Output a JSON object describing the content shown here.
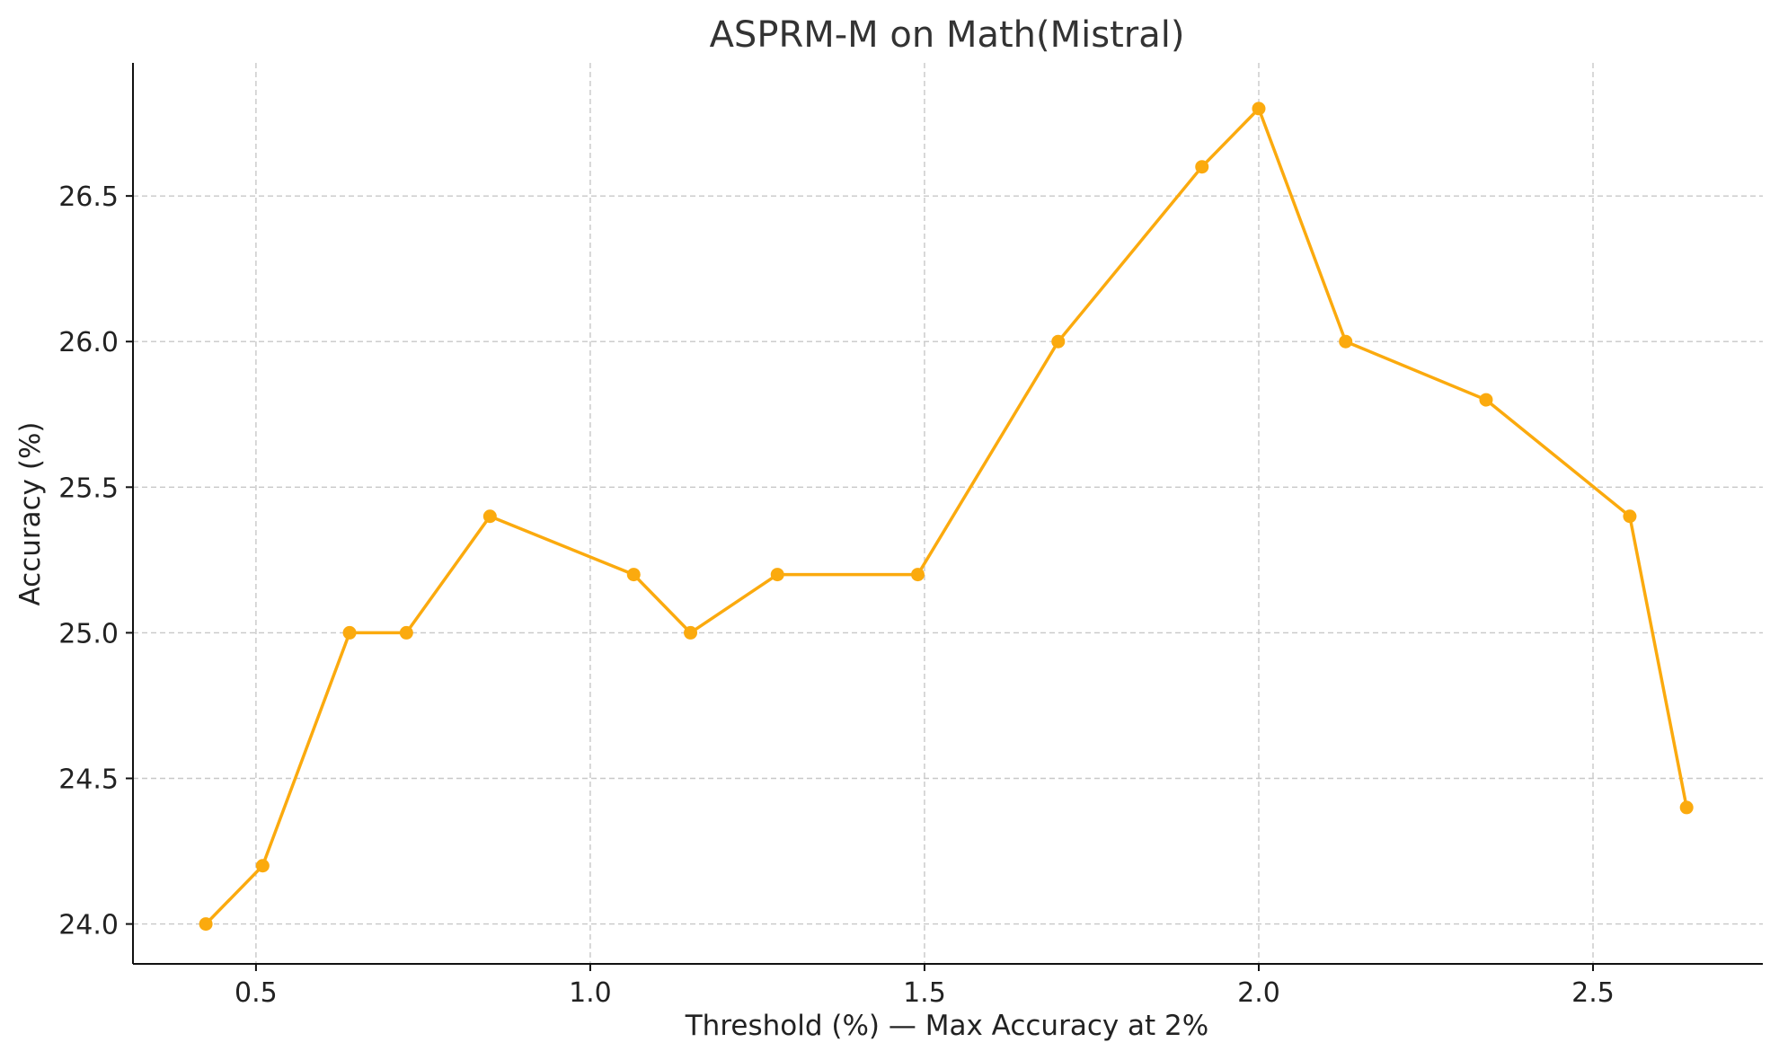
{
  "chart_data": {
    "type": "line",
    "title": "ASPRM-M on Math(Mistral)",
    "xlabel": "Threshold (%) — Max Accuracy at 2%",
    "ylabel": "Accuracy (%)",
    "xlim": [
      0.316,
      2.754
    ],
    "ylim": [
      23.863,
      26.957
    ],
    "xticks": [
      0.5,
      1.0,
      1.5,
      2.0,
      2.5
    ],
    "xtick_labels": [
      "0.5",
      "1.0",
      "1.5",
      "2.0",
      "2.5"
    ],
    "yticks": [
      24.0,
      24.5,
      25.0,
      25.5,
      26.0,
      26.5
    ],
    "ytick_labels": [
      "24.0",
      "24.5",
      "25.0",
      "25.5",
      "26.0",
      "26.5"
    ],
    "grid": true,
    "series": [
      {
        "color": "#FBAA0E",
        "marker": "circle",
        "x": [
          0.425,
          0.51,
          0.64,
          0.725,
          0.85,
          1.065,
          1.15,
          1.28,
          1.49,
          1.7,
          1.915,
          2.0,
          2.13,
          2.34,
          2.555,
          2.64
        ],
        "y": [
          24.0,
          24.2,
          25.0,
          25.0,
          25.4,
          25.2,
          25.0,
          25.2,
          25.2,
          26.0,
          26.6,
          26.8,
          26.0,
          25.8,
          25.4,
          24.4
        ]
      }
    ]
  }
}
